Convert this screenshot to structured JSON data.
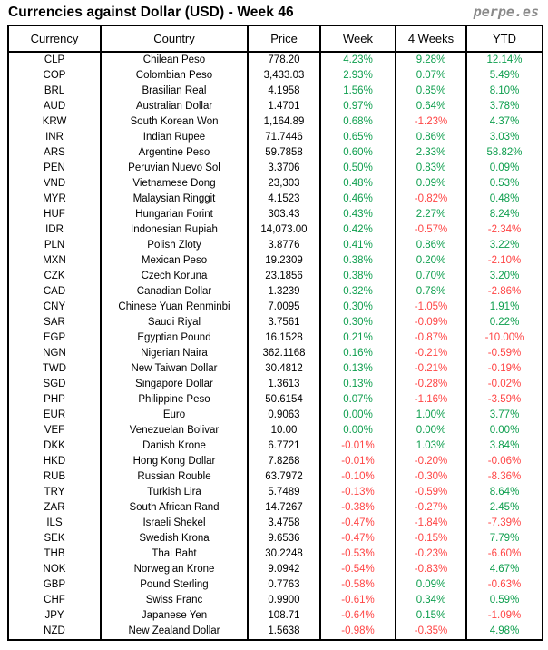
{
  "header": {
    "title": "Currencies against Dollar (USD) - Week 46",
    "logo": "perpe.es"
  },
  "colors": {
    "positive": "#0d9e4d",
    "negative": "#ff4545",
    "logo_gray": "#8a8a8a",
    "border": "#000000"
  },
  "chart_data": {
    "type": "table",
    "title": "Currencies against Dollar (USD) - Week 46",
    "columns": [
      "Currency",
      "Country",
      "Price",
      "Week",
      "4 Weeks",
      "YTD"
    ],
    "rows": [
      {
        "code": "CLP",
        "country": "Chilean Peso",
        "price": "778.20",
        "week": "4.23%",
        "four_weeks": "9.28%",
        "ytd": "12.14%"
      },
      {
        "code": "COP",
        "country": "Colombian Peso",
        "price": "3,433.03",
        "week": "2.93%",
        "four_weeks": "0.07%",
        "ytd": "5.49%"
      },
      {
        "code": "BRL",
        "country": "Brasilian Real",
        "price": "4.1958",
        "week": "1.56%",
        "four_weeks": "0.85%",
        "ytd": "8.10%"
      },
      {
        "code": "AUD",
        "country": "Australian Dollar",
        "price": "1.4701",
        "week": "0.97%",
        "four_weeks": "0.64%",
        "ytd": "3.78%"
      },
      {
        "code": "KRW",
        "country": "South Korean Won",
        "price": "1,164.89",
        "week": "0.68%",
        "four_weeks": "-1.23%",
        "ytd": "4.37%"
      },
      {
        "code": "INR",
        "country": "Indian Rupee",
        "price": "71.7446",
        "week": "0.65%",
        "four_weeks": "0.86%",
        "ytd": "3.03%"
      },
      {
        "code": "ARS",
        "country": "Argentine Peso",
        "price": "59.7858",
        "week": "0.60%",
        "four_weeks": "2.33%",
        "ytd": "58.82%"
      },
      {
        "code": "PEN",
        "country": "Peruvian Nuevo Sol",
        "price": "3.3706",
        "week": "0.50%",
        "four_weeks": "0.83%",
        "ytd": "0.09%"
      },
      {
        "code": "VND",
        "country": "Vietnamese Dong",
        "price": "23,303",
        "week": "0.48%",
        "four_weeks": "0.09%",
        "ytd": "0.53%"
      },
      {
        "code": "MYR",
        "country": "Malaysian Ringgit",
        "price": "4.1523",
        "week": "0.46%",
        "four_weeks": "-0.82%",
        "ytd": "0.48%"
      },
      {
        "code": "HUF",
        "country": "Hungarian Forint",
        "price": "303.43",
        "week": "0.43%",
        "four_weeks": "2.27%",
        "ytd": "8.24%"
      },
      {
        "code": "IDR",
        "country": "Indonesian Rupiah",
        "price": "14,073.00",
        "week": "0.42%",
        "four_weeks": "-0.57%",
        "ytd": "-2.34%"
      },
      {
        "code": "PLN",
        "country": "Polish Zloty",
        "price": "3.8776",
        "week": "0.41%",
        "four_weeks": "0.86%",
        "ytd": "3.22%"
      },
      {
        "code": "MXN",
        "country": "Mexican Peso",
        "price": "19.2309",
        "week": "0.38%",
        "four_weeks": "0.20%",
        "ytd": "-2.10%"
      },
      {
        "code": "CZK",
        "country": "Czech Koruna",
        "price": "23.1856",
        "week": "0.38%",
        "four_weeks": "0.70%",
        "ytd": "3.20%"
      },
      {
        "code": "CAD",
        "country": "Canadian Dollar",
        "price": "1.3239",
        "week": "0.32%",
        "four_weeks": "0.78%",
        "ytd": "-2.86%"
      },
      {
        "code": "CNY",
        "country": "Chinese Yuan Renminbi",
        "price": "7.0095",
        "week": "0.30%",
        "four_weeks": "-1.05%",
        "ytd": "1.91%"
      },
      {
        "code": "SAR",
        "country": "Saudi Riyal",
        "price": "3.7561",
        "week": "0.30%",
        "four_weeks": "-0.09%",
        "ytd": "0.22%"
      },
      {
        "code": "EGP",
        "country": "Egyptian Pound",
        "price": "16.1528",
        "week": "0.21%",
        "four_weeks": "-0.87%",
        "ytd": "-10.00%"
      },
      {
        "code": "NGN",
        "country": "Nigerian Naira",
        "price": "362.1168",
        "week": "0.16%",
        "four_weeks": "-0.21%",
        "ytd": "-0.59%"
      },
      {
        "code": "TWD",
        "country": "New Taiwan Dollar",
        "price": "30.4812",
        "week": "0.13%",
        "four_weeks": "-0.21%",
        "ytd": "-0.19%"
      },
      {
        "code": "SGD",
        "country": "Singapore Dollar",
        "price": "1.3613",
        "week": "0.13%",
        "four_weeks": "-0.28%",
        "ytd": "-0.02%"
      },
      {
        "code": "PHP",
        "country": "Philippine Peso",
        "price": "50.6154",
        "week": "0.07%",
        "four_weeks": "-1.16%",
        "ytd": "-3.59%"
      },
      {
        "code": "EUR",
        "country": "Euro",
        "price": "0.9063",
        "week": "0.00%",
        "four_weeks": "1.00%",
        "ytd": "3.77%"
      },
      {
        "code": "VEF",
        "country": "Venezuelan Bolivar",
        "price": "10.00",
        "week": "0.00%",
        "four_weeks": "0.00%",
        "ytd": "0.00%"
      },
      {
        "code": "DKK",
        "country": "Danish Krone",
        "price": "6.7721",
        "week": "-0.01%",
        "four_weeks": "1.03%",
        "ytd": "3.84%"
      },
      {
        "code": "HKD",
        "country": "Hong Kong Dollar",
        "price": "7.8268",
        "week": "-0.01%",
        "four_weeks": "-0.20%",
        "ytd": "-0.06%"
      },
      {
        "code": "RUB",
        "country": "Russian Rouble",
        "price": "63.7972",
        "week": "-0.10%",
        "four_weeks": "-0.30%",
        "ytd": "-8.36%"
      },
      {
        "code": "TRY",
        "country": "Turkish Lira",
        "price": "5.7489",
        "week": "-0.13%",
        "four_weeks": "-0.59%",
        "ytd": "8.64%"
      },
      {
        "code": "ZAR",
        "country": "South African Rand",
        "price": "14.7267",
        "week": "-0.38%",
        "four_weeks": "-0.27%",
        "ytd": "2.45%"
      },
      {
        "code": "ILS",
        "country": "Israeli Shekel",
        "price": "3.4758",
        "week": "-0.47%",
        "four_weeks": "-1.84%",
        "ytd": "-7.39%"
      },
      {
        "code": "SEK",
        "country": "Swedish Krona",
        "price": "9.6536",
        "week": "-0.47%",
        "four_weeks": "-0.15%",
        "ytd": "7.79%"
      },
      {
        "code": "THB",
        "country": "Thai Baht",
        "price": "30.2248",
        "week": "-0.53%",
        "four_weeks": "-0.23%",
        "ytd": "-6.60%"
      },
      {
        "code": "NOK",
        "country": "Norwegian Krone",
        "price": "9.0942",
        "week": "-0.54%",
        "four_weeks": "-0.83%",
        "ytd": "4.67%"
      },
      {
        "code": "GBP",
        "country": "Pound Sterling",
        "price": "0.7763",
        "week": "-0.58%",
        "four_weeks": "0.09%",
        "ytd": "-0.63%"
      },
      {
        "code": "CHF",
        "country": "Swiss Franc",
        "price": "0.9900",
        "week": "-0.61%",
        "four_weeks": "0.34%",
        "ytd": "0.59%"
      },
      {
        "code": "JPY",
        "country": "Japanese Yen",
        "price": "108.71",
        "week": "-0.64%",
        "four_weeks": "0.15%",
        "ytd": "-1.09%"
      },
      {
        "code": "NZD",
        "country": "New Zealand Dollar",
        "price": "1.5638",
        "week": "-0.98%",
        "four_weeks": "-0.35%",
        "ytd": "4.98%"
      }
    ]
  }
}
